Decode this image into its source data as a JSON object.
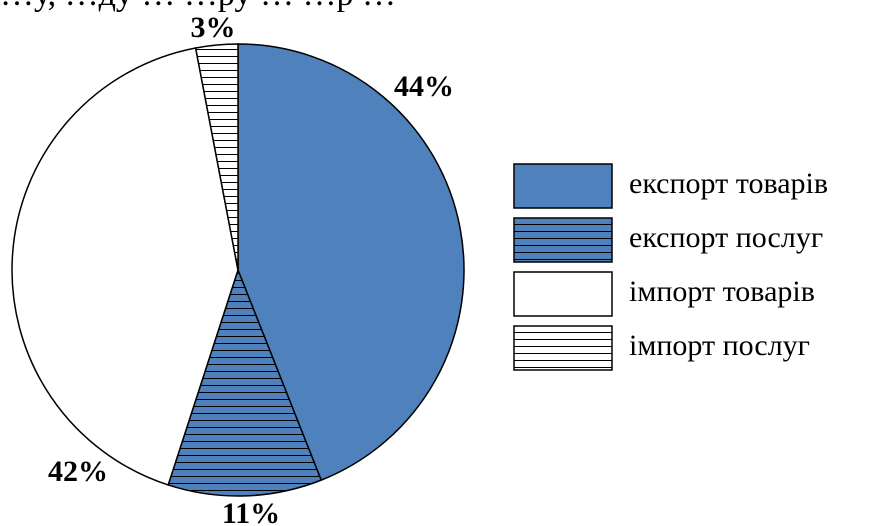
{
  "caption_fragment": "…у, …ду …      …ру …          …р   …",
  "chart_data": {
    "type": "pie",
    "title": "",
    "start_angle_deg": 0,
    "direction": "clockwise",
    "slices": [
      {
        "label": "експорт товарів",
        "value": 44,
        "display": "44%",
        "fill": "#4f81bd",
        "pattern": "solid"
      },
      {
        "label": "експорт послуг",
        "value": 11,
        "display": "11%",
        "fill": "#4f81bd",
        "pattern": "horizontal-lines"
      },
      {
        "label": "імпорт товарів",
        "value": 42,
        "display": "42%",
        "fill": "#ffffff",
        "pattern": "solid"
      },
      {
        "label": "імпорт послуг",
        "value": 3,
        "display": "3%",
        "fill": "#ffffff",
        "pattern": "horizontal-lines"
      }
    ],
    "legend": {
      "position": "right",
      "entries": [
        "експорт товарів",
        "експорт послуг",
        "імпорт товарів",
        "імпорт послуг"
      ]
    }
  }
}
